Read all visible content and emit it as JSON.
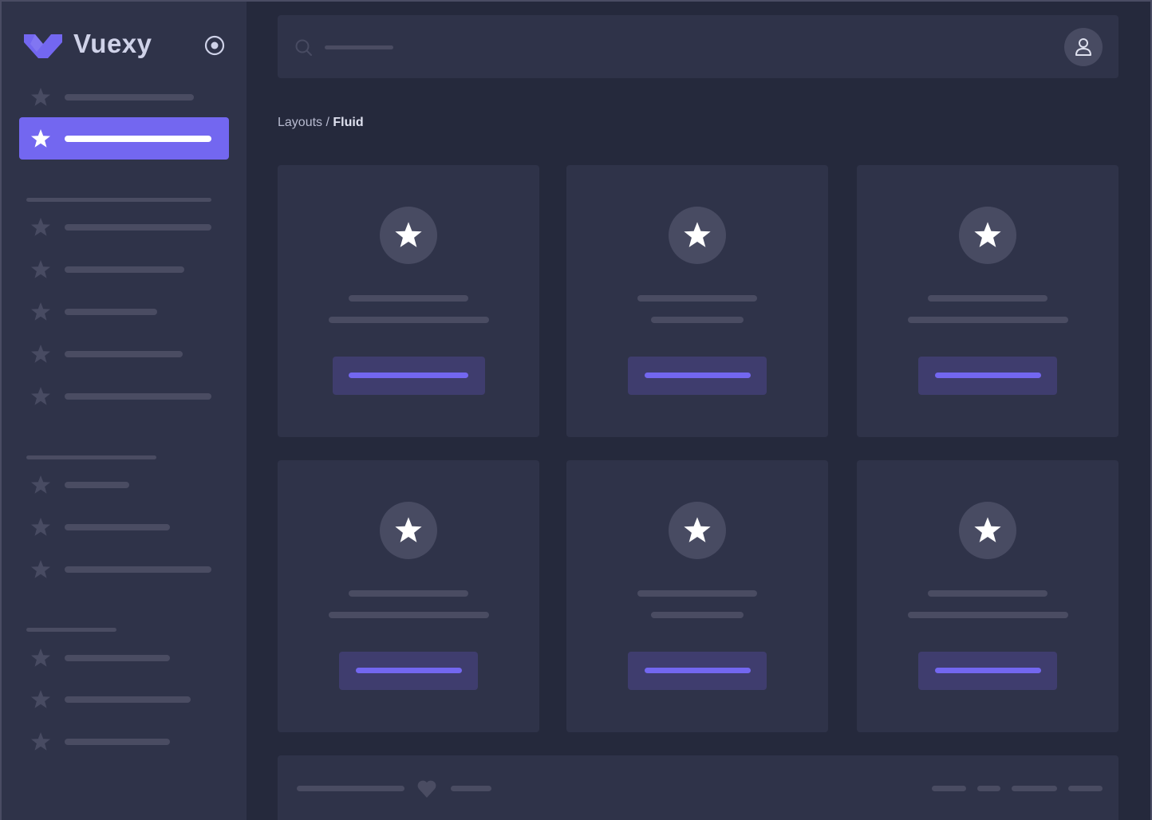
{
  "app": {
    "name": "Vuexy",
    "logo_icon": "vuexy-v-logo",
    "colors": {
      "accent": "#7367f0",
      "sidebar": "#2f3349",
      "background": "#25293c",
      "placeholder": "#4a4c62"
    }
  },
  "sidebar": {
    "toggle_icon": "radio-circle-icon",
    "item_icon": "star-icon",
    "active_index": 1
  },
  "header": {
    "search_icon": "search-icon",
    "avatar_icon": "user-icon"
  },
  "breadcrumb": {
    "parent": "Layouts",
    "separator": " / ",
    "current": "Fluid"
  },
  "cards": {
    "count": 6,
    "icon": "star-icon"
  },
  "footer": {
    "icon": "heart-icon"
  }
}
